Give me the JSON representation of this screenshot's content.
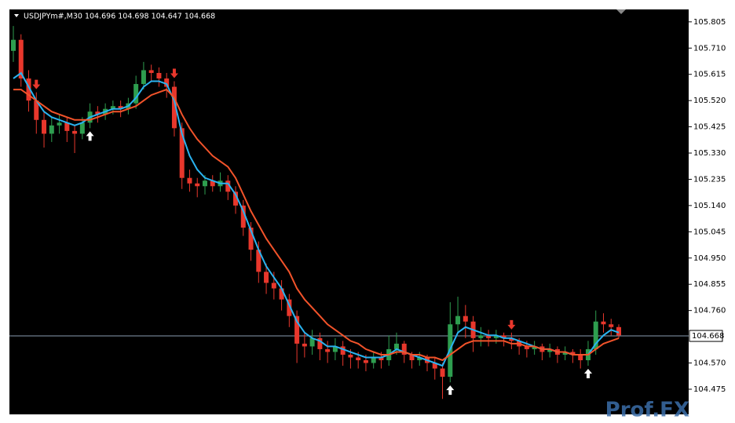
{
  "chart_data": {
    "type": "candlestick",
    "title": "USDJPYm#,M30  104.696 104.698 104.647 104.668",
    "watermark": "Prof.FX",
    "up_color": "#2e9e4f",
    "down_color": "#e8372c",
    "ylim": [
      104.384,
      105.85
    ],
    "yticks": [
      105.805,
      {
        "value": 105.71,
        "label": "105.710"
      },
      105.615,
      {
        "value": 105.52,
        "label": "105.520"
      },
      105.425,
      {
        "value": 105.33,
        "label": "105.330"
      },
      105.235,
      {
        "value": 105.14,
        "label": "105.140"
      },
      105.045,
      {
        "value": 104.95,
        "label": "104.950"
      },
      104.855,
      {
        "value": 104.76,
        "label": "104.760"
      },
      {
        "value": 104.57,
        "label": "104.570"
      },
      104.475
    ],
    "last_price": 104.668,
    "open": [
      105.7,
      105.74,
      105.6,
      105.52,
      105.45,
      105.4,
      105.43,
      105.44,
      105.41,
      105.4,
      105.44,
      105.48,
      105.47,
      105.49,
      105.5,
      105.49,
      105.51,
      105.58,
      105.63,
      105.62,
      105.6,
      105.57,
      105.42,
      105.24,
      105.22,
      105.21,
      105.23,
      105.21,
      105.23,
      105.19,
      105.14,
      105.06,
      104.98,
      104.9,
      104.86,
      104.84,
      104.8,
      104.74,
      104.64,
      104.63,
      104.66,
      104.62,
      104.61,
      104.63,
      104.6,
      104.59,
      104.58,
      104.57,
      104.59,
      104.58,
      104.62,
      104.64,
      104.6,
      104.58,
      104.59,
      104.57,
      104.55,
      104.52,
      104.71,
      104.74,
      104.72,
      104.66,
      104.67,
      104.66,
      104.67,
      104.66,
      104.65,
      104.63,
      104.62,
      104.63,
      104.61,
      104.62,
      104.6,
      104.61,
      104.6,
      104.58,
      104.62,
      104.72,
      104.71,
      104.7
    ],
    "high": [
      105.79,
      105.76,
      105.63,
      105.55,
      105.48,
      105.46,
      105.47,
      105.46,
      105.43,
      105.46,
      105.51,
      105.5,
      105.51,
      105.52,
      105.52,
      105.53,
      105.61,
      105.66,
      105.65,
      105.64,
      105.62,
      105.59,
      105.44,
      105.27,
      105.24,
      105.25,
      105.25,
      105.26,
      105.25,
      105.21,
      105.16,
      105.08,
      105.01,
      104.93,
      104.9,
      104.87,
      104.82,
      104.76,
      104.68,
      104.69,
      104.68,
      104.65,
      104.66,
      104.65,
      104.62,
      104.61,
      104.6,
      104.61,
      104.61,
      104.67,
      104.68,
      104.65,
      104.61,
      104.61,
      104.6,
      104.59,
      104.57,
      104.79,
      104.81,
      104.78,
      104.74,
      104.7,
      104.69,
      104.69,
      104.68,
      104.68,
      104.66,
      104.65,
      104.65,
      104.64,
      104.64,
      104.63,
      104.63,
      104.62,
      104.62,
      104.65,
      104.76,
      104.75,
      104.73,
      104.71
    ],
    "low": [
      105.66,
      105.57,
      105.48,
      105.4,
      105.35,
      105.37,
      105.4,
      105.37,
      105.33,
      105.38,
      105.42,
      105.44,
      105.45,
      105.47,
      105.46,
      105.47,
      105.49,
      105.56,
      105.59,
      105.57,
      105.53,
      105.39,
      105.2,
      105.19,
      105.17,
      105.18,
      105.19,
      105.19,
      105.16,
      105.11,
      105.03,
      104.94,
      104.86,
      104.82,
      104.8,
      104.76,
      104.7,
      104.57,
      104.59,
      104.6,
      104.58,
      104.57,
      104.58,
      104.56,
      104.55,
      104.55,
      104.54,
      104.55,
      104.55,
      104.56,
      104.6,
      104.57,
      104.55,
      104.56,
      104.54,
      104.51,
      104.44,
      104.5,
      104.68,
      104.66,
      104.61,
      104.63,
      104.63,
      104.64,
      104.63,
      104.62,
      104.6,
      104.59,
      104.6,
      104.58,
      104.59,
      104.57,
      104.58,
      104.57,
      104.55,
      104.56,
      104.6,
      104.68,
      104.67,
      104.66
    ],
    "close": [
      105.74,
      105.6,
      105.52,
      105.45,
      105.4,
      105.43,
      105.44,
      105.41,
      105.4,
      105.44,
      105.48,
      105.47,
      105.49,
      105.5,
      105.49,
      105.51,
      105.58,
      105.63,
      105.62,
      105.6,
      105.57,
      105.42,
      105.24,
      105.22,
      105.21,
      105.23,
      105.21,
      105.23,
      105.19,
      105.14,
      105.06,
      104.98,
      104.9,
      104.86,
      104.84,
      104.8,
      104.74,
      104.64,
      104.63,
      104.66,
      104.62,
      104.61,
      104.63,
      104.6,
      104.59,
      104.58,
      104.57,
      104.59,
      104.58,
      104.62,
      104.64,
      104.6,
      104.58,
      104.59,
      104.57,
      104.55,
      104.52,
      104.71,
      104.74,
      104.72,
      104.66,
      104.67,
      104.66,
      104.67,
      104.66,
      104.65,
      104.63,
      104.62,
      104.63,
      104.61,
      104.62,
      104.6,
      104.61,
      104.6,
      104.58,
      104.62,
      104.72,
      104.71,
      104.7,
      104.67
    ],
    "series": [
      {
        "color": "#2ab3f0",
        "values": [
          105.6,
          105.62,
          105.57,
          105.52,
          105.48,
          105.46,
          105.45,
          105.44,
          105.43,
          105.44,
          105.46,
          105.47,
          105.48,
          105.49,
          105.49,
          105.5,
          105.53,
          105.57,
          105.59,
          105.59,
          105.58,
          105.52,
          105.4,
          105.32,
          105.27,
          105.24,
          105.23,
          105.22,
          105.22,
          105.18,
          105.12,
          105.05,
          104.98,
          104.92,
          104.88,
          104.84,
          104.78,
          104.72,
          104.68,
          104.66,
          104.65,
          104.63,
          104.63,
          104.62,
          104.61,
          104.6,
          104.59,
          104.59,
          104.59,
          104.6,
          104.62,
          104.61,
          104.6,
          104.59,
          104.58,
          104.57,
          104.56,
          104.62,
          104.68,
          104.7,
          104.69,
          104.68,
          104.67,
          104.67,
          104.66,
          104.66,
          104.65,
          104.64,
          104.63,
          104.62,
          104.62,
          104.61,
          104.61,
          104.6,
          104.6,
          104.6,
          104.64,
          104.67,
          104.69,
          104.68
        ]
      },
      {
        "color": "#f2532a",
        "values": [
          105.56,
          105.56,
          105.54,
          105.52,
          105.5,
          105.48,
          105.47,
          105.46,
          105.45,
          105.45,
          105.45,
          105.46,
          105.47,
          105.48,
          105.48,
          105.49,
          105.5,
          105.52,
          105.54,
          105.55,
          105.56,
          105.53,
          105.47,
          105.42,
          105.38,
          105.35,
          105.32,
          105.3,
          105.28,
          105.24,
          105.18,
          105.12,
          105.07,
          105.02,
          104.98,
          104.94,
          104.9,
          104.84,
          104.8,
          104.77,
          104.74,
          104.71,
          104.69,
          104.67,
          104.65,
          104.64,
          104.62,
          104.61,
          104.6,
          104.6,
          104.61,
          104.61,
          104.6,
          104.6,
          104.59,
          104.59,
          104.58,
          104.6,
          104.62,
          104.64,
          104.65,
          104.65,
          104.65,
          104.65,
          104.65,
          104.64,
          104.64,
          104.63,
          104.63,
          104.62,
          104.62,
          104.61,
          104.61,
          104.6,
          104.6,
          104.6,
          104.62,
          104.64,
          104.65,
          104.66
        ]
      }
    ],
    "buy_signals": [
      10,
      57,
      75
    ],
    "sell_signals": [
      3,
      21,
      65
    ]
  }
}
